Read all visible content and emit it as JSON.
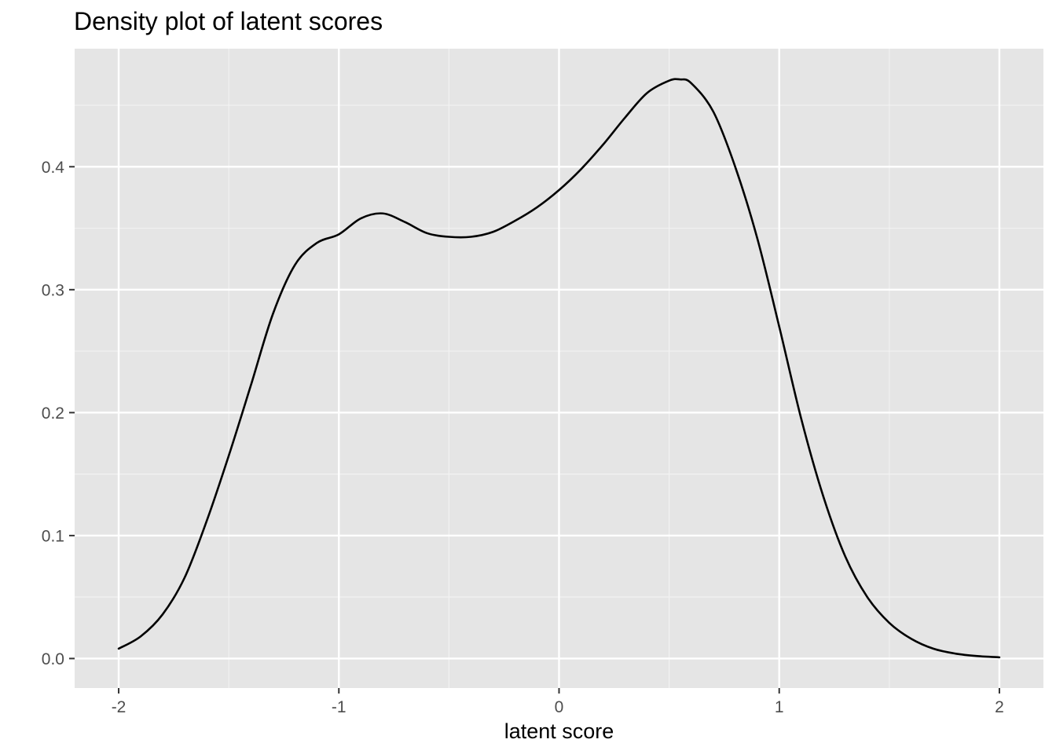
{
  "chart_data": {
    "type": "line",
    "title": "Density plot of latent scores",
    "xlabel": "latent score",
    "ylabel": "",
    "xlim": [
      -2.2,
      2.2
    ],
    "ylim": [
      -0.024,
      0.496
    ],
    "x_ticks": [
      -2,
      -1,
      0,
      1,
      2
    ],
    "x_tick_labels": [
      "-2",
      "-1",
      "0",
      "1",
      "2"
    ],
    "y_ticks": [
      0.0,
      0.1,
      0.2,
      0.3,
      0.4
    ],
    "y_tick_labels": [
      "0.0",
      "0.1",
      "0.2",
      "0.3",
      "0.4"
    ],
    "grid": true,
    "legend": "none",
    "series": [
      {
        "x": [
          -2.0,
          -1.9,
          -1.8,
          -1.7,
          -1.6,
          -1.5,
          -1.4,
          -1.3,
          -1.2,
          -1.1,
          -1.0,
          -0.9,
          -0.8,
          -0.7,
          -0.6,
          -0.5,
          -0.4,
          -0.3,
          -0.2,
          -0.1,
          0.0,
          0.1,
          0.2,
          0.3,
          0.4,
          0.5,
          0.55,
          0.6,
          0.7,
          0.8,
          0.9,
          1.0,
          1.1,
          1.2,
          1.3,
          1.4,
          1.5,
          1.6,
          1.7,
          1.8,
          1.9,
          2.0
        ],
        "y": [
          0.008,
          0.018,
          0.036,
          0.066,
          0.112,
          0.165,
          0.222,
          0.28,
          0.32,
          0.338,
          0.345,
          0.358,
          0.362,
          0.355,
          0.346,
          0.343,
          0.343,
          0.347,
          0.356,
          0.367,
          0.381,
          0.398,
          0.418,
          0.44,
          0.46,
          0.47,
          0.471,
          0.468,
          0.445,
          0.4,
          0.342,
          0.27,
          0.195,
          0.132,
          0.083,
          0.05,
          0.029,
          0.016,
          0.008,
          0.004,
          0.002,
          0.001
        ],
        "color": "#000000"
      }
    ]
  },
  "colors": {
    "panel_background": "#e5e5e5",
    "grid_major": "#ffffff",
    "grid_minor": "#f2f2f2",
    "line": "#000000"
  }
}
